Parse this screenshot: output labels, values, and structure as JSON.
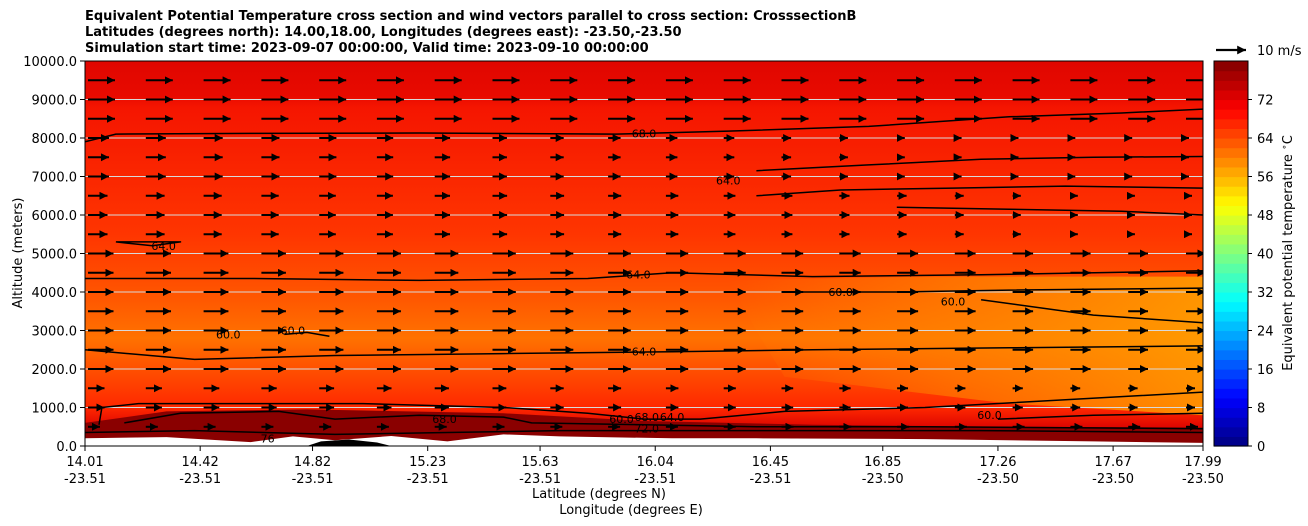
{
  "chart_data": {
    "type": "heatmap",
    "title_lines": [
      "Equivalent Potential Temperature cross section and wind vectors parallel to cross section: CrosssectionB",
      "Latitudes (degrees north): 14.00,18.00, Longitudes (degrees east): -23.50,-23.50",
      "Simulation start time: 2023-09-07 00:00:00, Valid time: 2023-09-10 00:00:00"
    ],
    "ylabel": "Altitude (meters)",
    "xlabel_lines": [
      "Latitude (degrees N)",
      "Longitude (degrees E)"
    ],
    "ylim": [
      0,
      10000
    ],
    "y_ticks": [
      0,
      1000,
      2000,
      3000,
      4000,
      5000,
      6000,
      7000,
      8000,
      9000,
      10000
    ],
    "y_tick_labels": [
      "0.0",
      "1000.0",
      "2000.0",
      "3000.0",
      "4000.0",
      "5000.0",
      "6000.0",
      "7000.0",
      "8000.0",
      "9000.0",
      "10000.0"
    ],
    "xlim": [
      14.01,
      17.99
    ],
    "x_ticks": [
      14.01,
      14.42,
      14.82,
      15.23,
      15.63,
      16.04,
      16.45,
      16.85,
      17.26,
      17.67,
      17.99
    ],
    "x_tick_labels": [
      [
        "14.01",
        "-23.51"
      ],
      [
        "14.42",
        "-23.51"
      ],
      [
        "14.82",
        "-23.51"
      ],
      [
        "15.23",
        "-23.51"
      ],
      [
        "15.63",
        "-23.51"
      ],
      [
        "16.04",
        "-23.51"
      ],
      [
        "16.45",
        "-23.51"
      ],
      [
        "16.85",
        "-23.50"
      ],
      [
        "17.26",
        "-23.50"
      ],
      [
        "17.67",
        "-23.50"
      ],
      [
        "17.99",
        "-23.50"
      ]
    ],
    "grid": "horizontal",
    "colorbar": {
      "label": "Equivalent potential temperature $^\\circ$C",
      "range": [
        0,
        80
      ],
      "ticks": [
        0,
        8,
        16,
        24,
        32,
        40,
        48,
        56,
        64,
        72
      ],
      "tick_labels": [
        "0",
        "8",
        "16",
        "24",
        "32",
        "40",
        "48",
        "56",
        "64",
        "72"
      ]
    },
    "quiver_key": {
      "label": "10 m/s",
      "speed": 10
    },
    "contours": [
      {
        "level": 68,
        "label": "68.0",
        "points": [
          [
            14.01,
            7900
          ],
          [
            14.12,
            8100
          ],
          [
            14.6,
            8120
          ],
          [
            15.2,
            8130
          ],
          [
            15.9,
            8100
          ],
          [
            16.3,
            8180
          ],
          [
            16.8,
            8300
          ],
          [
            17.3,
            8550
          ],
          [
            17.7,
            8650
          ],
          [
            17.99,
            8750
          ]
        ]
      },
      {
        "level": 64,
        "label": "64.0",
        "points": [
          [
            16.4,
            7150
          ],
          [
            16.8,
            7300
          ],
          [
            17.2,
            7450
          ],
          [
            17.6,
            7500
          ],
          [
            17.99,
            7520
          ]
        ]
      },
      {
        "level": 64,
        "label": "64.0",
        "points": [
          [
            16.4,
            6500
          ],
          [
            16.7,
            6650
          ],
          [
            17.1,
            6700
          ],
          [
            17.5,
            6750
          ],
          [
            17.99,
            6700
          ]
        ]
      },
      {
        "level": 64,
        "label": "64.0",
        "points": [
          [
            16.9,
            6200
          ],
          [
            17.3,
            6150
          ],
          [
            17.7,
            6100
          ],
          [
            17.99,
            6000
          ]
        ]
      },
      {
        "level": 64,
        "label": "64.0",
        "points": [
          [
            14.12,
            5300
          ],
          [
            14.25,
            5200
          ],
          [
            14.35,
            5300
          ],
          [
            14.12,
            5300
          ]
        ]
      },
      {
        "level": 64,
        "label": "64.0",
        "points": [
          [
            14.01,
            4350
          ],
          [
            14.6,
            4350
          ],
          [
            15.2,
            4300
          ],
          [
            15.8,
            4350
          ],
          [
            16.1,
            4500
          ],
          [
            16.6,
            4400
          ],
          [
            17.2,
            4450
          ],
          [
            17.99,
            4550
          ]
        ]
      },
      {
        "level": 60,
        "label": "60.0",
        "points": [
          [
            16.5,
            4000
          ],
          [
            16.9,
            4000
          ],
          [
            17.3,
            4050
          ],
          [
            17.99,
            4100
          ]
        ]
      },
      {
        "level": 60,
        "label": "60.0",
        "points": [
          [
            17.2,
            3800
          ],
          [
            17.6,
            3400
          ],
          [
            17.99,
            3200
          ]
        ]
      },
      {
        "level": 64,
        "label": "64.0",
        "points": [
          [
            14.01,
            2500
          ],
          [
            14.4,
            2250
          ],
          [
            14.9,
            2350
          ],
          [
            15.5,
            2400
          ],
          [
            16.1,
            2450
          ],
          [
            16.6,
            2500
          ],
          [
            17.3,
            2550
          ],
          [
            17.99,
            2600
          ]
        ]
      },
      {
        "level": 60,
        "label": "60.0",
        "points": [
          [
            14.72,
            2900
          ],
          [
            14.8,
            2950
          ],
          [
            14.88,
            2850
          ]
        ]
      },
      {
        "level": 68,
        "label": "68.0",
        "points": [
          [
            14.06,
            550
          ],
          [
            14.07,
            1000
          ],
          [
            14.2,
            1100
          ],
          [
            15.0,
            1100
          ],
          [
            15.5,
            1000
          ],
          [
            15.8,
            850
          ],
          [
            16.0,
            700
          ],
          [
            16.2,
            700
          ],
          [
            16.5,
            900
          ],
          [
            17.0,
            1000
          ],
          [
            17.5,
            1200
          ],
          [
            17.99,
            1400
          ]
        ]
      },
      {
        "level": 60,
        "label": "60.0",
        "points": [
          [
            17.26,
            700
          ],
          [
            17.6,
            800
          ],
          [
            17.99,
            850
          ]
        ]
      },
      {
        "level": 72,
        "label": "72.0",
        "points": [
          [
            14.15,
            600
          ],
          [
            14.35,
            850
          ],
          [
            14.7,
            900
          ],
          [
            14.9,
            700
          ],
          [
            15.2,
            800
          ],
          [
            15.5,
            750
          ],
          [
            15.6,
            600
          ],
          [
            16.0,
            550
          ],
          [
            16.4,
            500
          ],
          [
            17.0,
            500
          ],
          [
            17.99,
            450
          ]
        ]
      },
      {
        "level": 76,
        "label": "76.0",
        "points": [
          [
            14.01,
            350
          ],
          [
            14.4,
            400
          ],
          [
            14.9,
            300
          ],
          [
            15.3,
            350
          ],
          [
            15.7,
            400
          ],
          [
            16.1,
            400
          ],
          [
            16.6,
            400
          ],
          [
            17.2,
            400
          ],
          [
            17.99,
            350
          ]
        ]
      }
    ],
    "contour_labels": [
      {
        "text": "68.0",
        "x": 16.0,
        "y": 8120
      },
      {
        "text": "64.0",
        "x": 16.3,
        "y": 6900
      },
      {
        "text": "64.0",
        "x": 14.29,
        "y": 5200
      },
      {
        "text": "64.0",
        "x": 15.98,
        "y": 4450
      },
      {
        "text": "60.0",
        "x": 16.7,
        "y": 4000
      },
      {
        "text": "60.0",
        "x": 17.1,
        "y": 3750
      },
      {
        "text": "60.0",
        "x": 14.52,
        "y": 2900
      },
      {
        "text": "60.0",
        "x": 14.75,
        "y": 3000
      },
      {
        "text": "64.0",
        "x": 16.0,
        "y": 2450
      },
      {
        "text": "68.0",
        "x": 15.29,
        "y": 700
      },
      {
        "text": "68.0",
        "x": 16.01,
        "y": 750
      },
      {
        "text": "72.0",
        "x": 16.01,
        "y": 450
      },
      {
        "text": "60.0",
        "x": 15.92,
        "y": 700
      },
      {
        "text": "64.0",
        "x": 16.1,
        "y": 750
      },
      {
        "text": "60.0",
        "x": 17.23,
        "y": 800
      },
      {
        "text": "76",
        "x": 14.66,
        "y": 200
      }
    ],
    "wind_field_note": "Winds mostly eastward (~4-9 m/s); strongest 2000-5500 m and above 8500 m; weak near 6000-8000 m on right side"
  }
}
